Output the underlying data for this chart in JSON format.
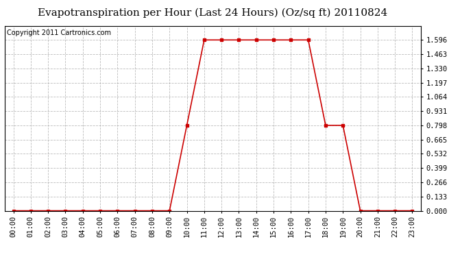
{
  "title": "Evapotranspiration per Hour (Last 24 Hours) (Oz/sq ft) 20110824",
  "copyright_text": "Copyright 2011 Cartronics.com",
  "hours": [
    0,
    1,
    2,
    3,
    4,
    5,
    6,
    7,
    8,
    9,
    10,
    11,
    12,
    13,
    14,
    15,
    16,
    17,
    18,
    19,
    20,
    21,
    22,
    23
  ],
  "values": [
    0.0,
    0.0,
    0.0,
    0.0,
    0.0,
    0.0,
    0.0,
    0.0,
    0.0,
    0.0,
    0.798,
    1.596,
    1.596,
    1.596,
    1.596,
    1.596,
    1.596,
    1.596,
    0.798,
    0.798,
    0.0,
    0.0,
    0.0,
    0.0
  ],
  "ylim_min": 0.0,
  "ylim_max": 1.729,
  "yticks": [
    0.0,
    0.133,
    0.266,
    0.399,
    0.532,
    0.665,
    0.798,
    0.931,
    1.064,
    1.197,
    1.33,
    1.463,
    1.596
  ],
  "line_color": "#cc0000",
  "marker": "s",
  "marker_size": 3,
  "bg_color": "#ffffff",
  "plot_bg_color": "#ffffff",
  "grid_color": "#aaaaaa",
  "title_fontsize": 11,
  "tick_fontsize": 7.5,
  "copyright_fontsize": 7
}
